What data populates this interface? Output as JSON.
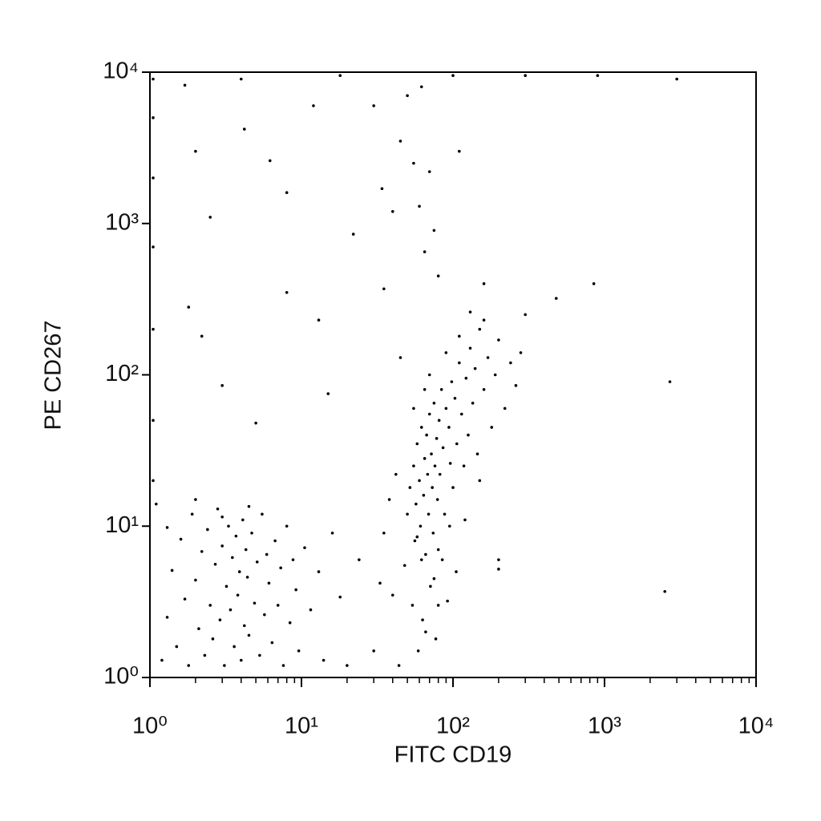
{
  "chart_data": {
    "type": "scatter",
    "xlabel": "FITC CD19",
    "ylabel": "PE CD267",
    "xscale": "log",
    "yscale": "log",
    "xlim": [
      1,
      10000
    ],
    "ylim": [
      1,
      10000
    ],
    "xticks": [
      {
        "value": 1,
        "label": "10⁰"
      },
      {
        "value": 10,
        "label": "10¹"
      },
      {
        "value": 100,
        "label": "10²"
      },
      {
        "value": 1000,
        "label": "10³"
      },
      {
        "value": 10000,
        "label": "10⁴"
      }
    ],
    "yticks": [
      {
        "value": 1,
        "label": "10⁰"
      },
      {
        "value": 10,
        "label": "10¹"
      },
      {
        "value": 100,
        "label": "10²"
      },
      {
        "value": 1000,
        "label": "10³"
      },
      {
        "value": 10000,
        "label": "10⁴"
      }
    ],
    "x_minor_ticks": true,
    "color": "#000000",
    "x": [
      1.2,
      1.3,
      1.4,
      1.5,
      1.6,
      1.7,
      1.8,
      1.9,
      2.0,
      2.1,
      2.2,
      2.3,
      2.4,
      2.5,
      2.6,
      2.7,
      2.8,
      2.9,
      3.0,
      3.1,
      3.2,
      3.3,
      3.4,
      3.5,
      3.6,
      3.7,
      3.8,
      3.9,
      4.0,
      4.1,
      4.2,
      4.3,
      4.4,
      4.5,
      4.7,
      4.9,
      5.1,
      5.3,
      5.5,
      5.7,
      5.9,
      6.1,
      6.4,
      6.7,
      7.0,
      7.3,
      7.6,
      8.0,
      8.4,
      8.8,
      9.2,
      9.6,
      10.5,
      11.5,
      13,
      14,
      16,
      18,
      20,
      24,
      1.1,
      1.3,
      2.0,
      3.0,
      4.5,
      48,
      50,
      52,
      54,
      55,
      56,
      57,
      58,
      59,
      60,
      61,
      62,
      63,
      64,
      65,
      66,
      67,
      68,
      69,
      70,
      71,
      72,
      73,
      74,
      75,
      76,
      77,
      78,
      79,
      80,
      81,
      82,
      84,
      86,
      88,
      90,
      92,
      94,
      96,
      98,
      100,
      103,
      106,
      110,
      114,
      118,
      122,
      126,
      130,
      135,
      140,
      145,
      150,
      160,
      170,
      180,
      190,
      200,
      220,
      240,
      260,
      280,
      300,
      130,
      160,
      110,
      90,
      45,
      70,
      65,
      55,
      85,
      95,
      75,
      62,
      58,
      66,
      80,
      105,
      120,
      150,
      200,
      40,
      35,
      30,
      33,
      38,
      44,
      42,
      1.05,
      1.05,
      1.05,
      1.05,
      1.05,
      1.05,
      1.05,
      1.7,
      2.0,
      2.5,
      4.0,
      4.2,
      6.2,
      8.0,
      12,
      13,
      18,
      22,
      30,
      34,
      40,
      45,
      50,
      55,
      60,
      62,
      65,
      70,
      75,
      80,
      100,
      110,
      160,
      300,
      850,
      900,
      3000,
      2700,
      2500,
      200,
      8,
      15,
      5,
      3,
      2.2,
      1.8,
      35,
      480
    ],
    "values": [
      1.3,
      2.5,
      5.1,
      1.6,
      8.2,
      3.3,
      1.2,
      12,
      4.4,
      2.1,
      6.8,
      1.4,
      9.5,
      3.0,
      1.8,
      5.6,
      13,
      2.4,
      7.4,
      1.2,
      4.0,
      10,
      2.8,
      6.2,
      1.6,
      8.6,
      3.5,
      5.0,
      1.3,
      11,
      2.2,
      7.0,
      4.6,
      1.9,
      9.0,
      3.1,
      5.8,
      1.4,
      12,
      2.6,
      6.5,
      4.2,
      1.7,
      8.0,
      3.0,
      5.3,
      1.2,
      10,
      2.3,
      6.0,
      3.8,
      1.5,
      7.2,
      2.8,
      5.0,
      1.3,
      9.0,
      3.4,
      1.2,
      6.0,
      14,
      9.8,
      15,
      11.5,
      13.5,
      5.5,
      12,
      18,
      3.0,
      25,
      8.0,
      14,
      35,
      1.5,
      20,
      10,
      45,
      2.4,
      16,
      28,
      6.5,
      40,
      22,
      12,
      55,
      4.0,
      30,
      18,
      9.0,
      65,
      25,
      1.8,
      38,
      15,
      7.0,
      50,
      22,
      80,
      33,
      12,
      60,
      3.2,
      45,
      26,
      90,
      18,
      70,
      35,
      120,
      55,
      25,
      95,
      40,
      150,
      65,
      110,
      30,
      200,
      80,
      130,
      45,
      100,
      170,
      60,
      120,
      85,
      140,
      250,
      260,
      230,
      180,
      140,
      130,
      100,
      80,
      60,
      6.0,
      10,
      4.5,
      6,
      8.5,
      2.0,
      3.0,
      5.0,
      11,
      20,
      6.0,
      3.5,
      9.0,
      1.5,
      4.2,
      15,
      1.2,
      22,
      9000,
      5000,
      2000,
      700,
      200,
      50,
      20,
      8200,
      3000,
      1100,
      9000,
      4200,
      2600,
      1600,
      6000,
      230,
      9500,
      850,
      6000,
      1700,
      1200,
      3500,
      7000,
      2500,
      1300,
      8000,
      650,
      2200,
      900,
      450,
      9500,
      3000,
      400,
      9500,
      400,
      9500,
      9000,
      90,
      3.7,
      5.2,
      350,
      75,
      48,
      85,
      180,
      280,
      370,
      320
    ]
  }
}
